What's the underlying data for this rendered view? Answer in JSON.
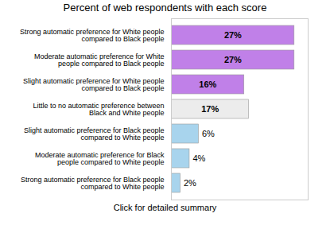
{
  "chart_data": {
    "type": "bar",
    "orientation": "horizontal",
    "title": "Percent of web respondents with each score",
    "annotations": [
      "Click for detailed summary"
    ],
    "categories": [
      "Strong automatic preference for White people\ncompared to Black people",
      "Moderate automatic preference for White\npeople compared to Black people",
      "Slight automatic preference for White people\ncompared to Black people",
      "Little to no automatic preference between\nBlack and White people",
      "Slight automatic preference for Black people\ncompared to White people",
      "Moderate automatic preference for Black\npeople compared to White people",
      "Strong automatic preference for Black people\ncompared to White people"
    ],
    "values": [
      27,
      27,
      16,
      17,
      6,
      4,
      2
    ],
    "value_labels": [
      "27%",
      "27%",
      "16%",
      "17%",
      "6%",
      "4%",
      "2%"
    ],
    "colors": [
      "#c080e8",
      "#c080e8",
      "#c080e8",
      "#ececec",
      "#a8d4ed",
      "#a8d4ed",
      "#a8d4ed"
    ],
    "xlim": [
      0,
      30
    ],
    "data_labels": true,
    "tick_labels": "y",
    "grid": false
  }
}
